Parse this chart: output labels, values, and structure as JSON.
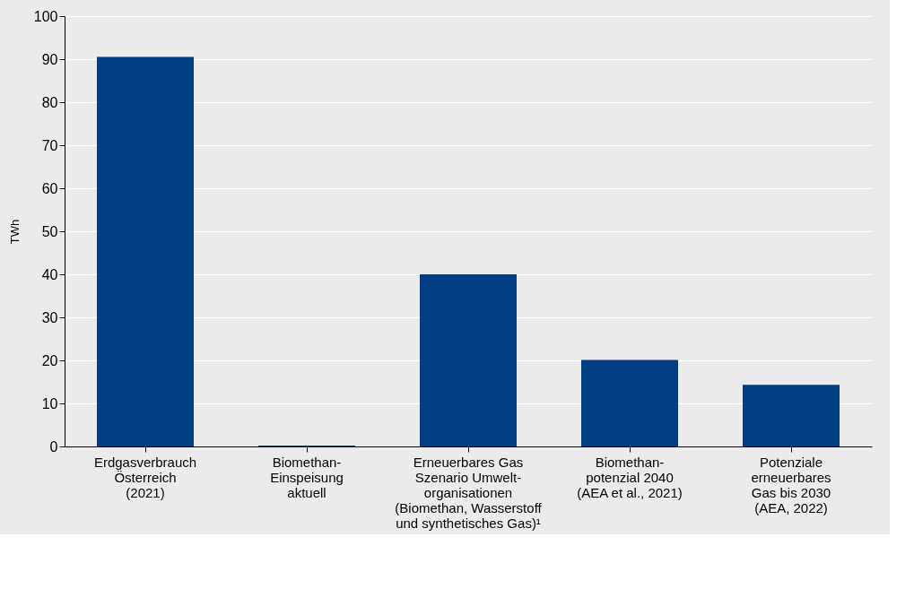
{
  "chart_data": {
    "type": "bar",
    "categories": [
      "Erdgasverbrauch\nÖsterreich\n(2021)",
      "Biomethan-\nEinspeisung\naktuell",
      "Erneuerbares Gas\nSzenario Umwelt-\norganisationen\n(Biomethan, Wasserstoff\nund synthetisches Gas)¹",
      "Biomethan-\npotenzial 2040\n(AEA et al., 2021)",
      "Potenziale\nerneuerbares\nGas bis 2030\n(AEA, 2022)"
    ],
    "values": [
      90.5,
      0.2,
      40,
      20.1,
      14.3
    ],
    "color": "#003d84",
    "ylabel": "TWh",
    "ylim": [
      0,
      100
    ],
    "yticks": [
      0,
      10,
      20,
      30,
      40,
      50,
      60,
      70,
      80,
      90,
      100
    ],
    "grid": "y"
  }
}
